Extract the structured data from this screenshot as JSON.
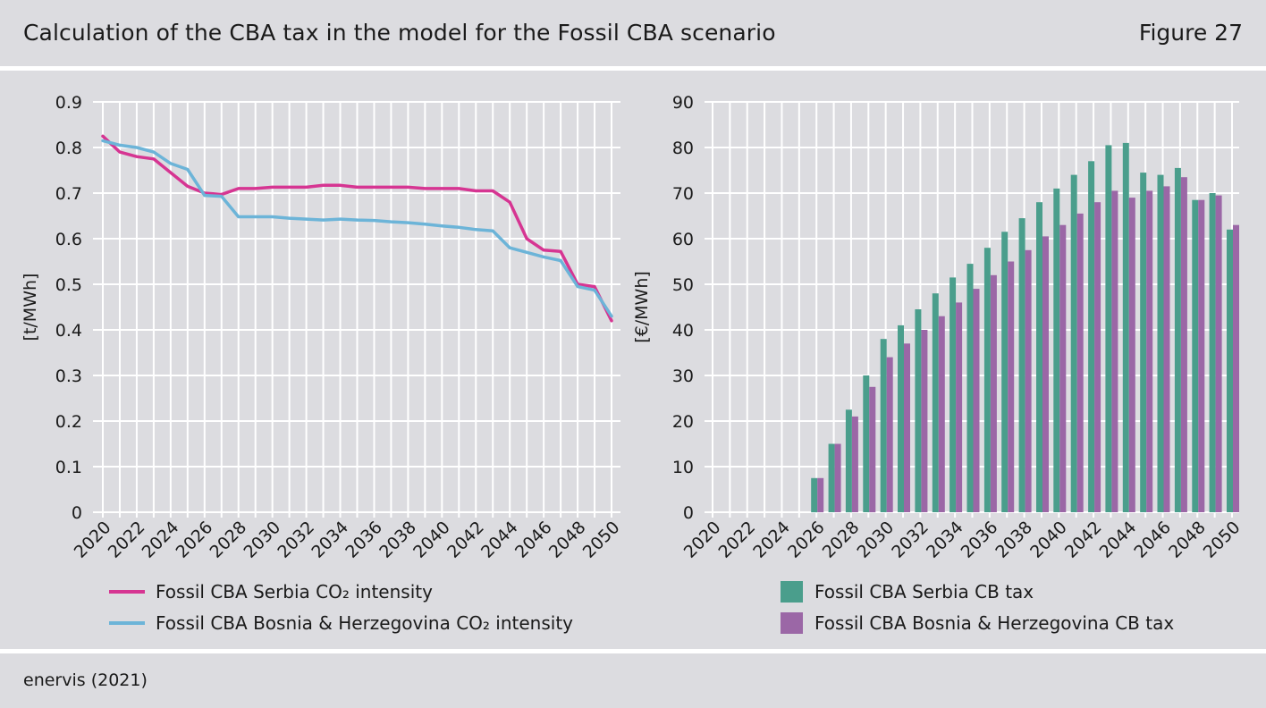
{
  "header": {
    "title": "Calculation of the CBA tax in the model for the Fossil CBA scenario",
    "figure_label": "Figure 27"
  },
  "footer": {
    "source": "enervis (2021)"
  },
  "colors": {
    "serbia_line": "#d63592",
    "bosnia_line": "#6cb4d8",
    "serbia_bar": "#4a9e8c",
    "bosnia_bar": "#9b67a6",
    "grid": "#ffffff",
    "background": "#dcdce0"
  },
  "chart_data": [
    {
      "type": "line",
      "ylabel": "[t/MWh]",
      "xlabel": "",
      "ylim": [
        0,
        0.9
      ],
      "yticks": [
        "0",
        "0.1",
        "0.2",
        "0.3",
        "0.4",
        "0.5",
        "0.6",
        "0.7",
        "0.8",
        "0.9"
      ],
      "x_tick_labels": [
        "2020",
        "2022",
        "2024",
        "2026",
        "2028",
        "2030",
        "2032",
        "2034",
        "2036",
        "2038",
        "2040",
        "2042",
        "2044",
        "2046",
        "2048",
        "2050"
      ],
      "x": [
        2020,
        2021,
        2022,
        2023,
        2024,
        2025,
        2026,
        2027,
        2028,
        2029,
        2030,
        2031,
        2032,
        2033,
        2034,
        2035,
        2036,
        2037,
        2038,
        2039,
        2040,
        2041,
        2042,
        2043,
        2044,
        2045,
        2046,
        2047,
        2048,
        2049,
        2050
      ],
      "grid": true,
      "legend_position": "bottom",
      "series": [
        {
          "name": "Fossil CBA Serbia CO₂ intensity",
          "values": [
            0.825,
            0.79,
            0.78,
            0.775,
            0.745,
            0.715,
            0.7,
            0.697,
            0.71,
            0.71,
            0.713,
            0.713,
            0.713,
            0.717,
            0.717,
            0.713,
            0.713,
            0.713,
            0.713,
            0.71,
            0.71,
            0.71,
            0.705,
            0.705,
            0.68,
            0.6,
            0.575,
            0.572,
            0.5,
            0.495,
            0.42
          ]
        },
        {
          "name": "Fossil CBA Bosnia & Herzegovina CO₂ intensity",
          "values": [
            0.815,
            0.805,
            0.8,
            0.79,
            0.765,
            0.752,
            0.695,
            0.693,
            0.648,
            0.648,
            0.648,
            0.645,
            0.643,
            0.641,
            0.643,
            0.641,
            0.64,
            0.637,
            0.635,
            0.632,
            0.628,
            0.625,
            0.62,
            0.617,
            0.58,
            0.57,
            0.56,
            0.552,
            0.495,
            0.487,
            0.43
          ]
        }
      ]
    },
    {
      "type": "bar",
      "ylabel": "[€/MWh]",
      "xlabel": "",
      "ylim": [
        0,
        90
      ],
      "yticks": [
        "0",
        "10",
        "20",
        "30",
        "40",
        "50",
        "60",
        "70",
        "80",
        "90"
      ],
      "x_tick_labels": [
        "2020",
        "2022",
        "2024",
        "2026",
        "2028",
        "2030",
        "2032",
        "2034",
        "2036",
        "2038",
        "2040",
        "2042",
        "2044",
        "2046",
        "2048",
        "2050"
      ],
      "categories": [
        2020,
        2021,
        2022,
        2023,
        2024,
        2025,
        2026,
        2027,
        2028,
        2029,
        2030,
        2031,
        2032,
        2033,
        2034,
        2035,
        2036,
        2037,
        2038,
        2039,
        2040,
        2041,
        2042,
        2043,
        2044,
        2045,
        2046,
        2047,
        2048,
        2049,
        2050
      ],
      "grid": true,
      "legend_position": "bottom",
      "series": [
        {
          "name": "Fossil CBA Serbia CB tax",
          "values": [
            0,
            0,
            0,
            0,
            0,
            0,
            7.5,
            15,
            22.5,
            30,
            38,
            41,
            44.5,
            48,
            51.5,
            54.5,
            58,
            61.5,
            64.5,
            68,
            71,
            74,
            77,
            80.5,
            81,
            74.5,
            74,
            75.5,
            68.5,
            70,
            62
          ]
        },
        {
          "name": "Fossil CBA Bosnia & Herzegovina CB tax",
          "values": [
            0,
            0,
            0,
            0,
            0,
            0,
            7.5,
            15,
            21,
            27.5,
            34,
            37,
            40,
            43,
            46,
            49,
            52,
            55,
            57.5,
            60.5,
            63,
            65.5,
            68,
            70.5,
            69,
            70.5,
            71.5,
            73.5,
            68.5,
            69.5,
            63
          ]
        }
      ]
    }
  ]
}
